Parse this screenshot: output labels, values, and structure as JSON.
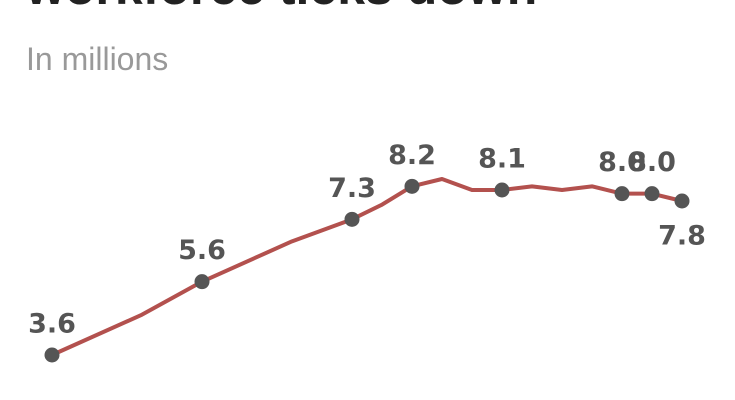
{
  "chart_data": {
    "type": "line",
    "title": "workforce ticks down",
    "subtitle": "In millions",
    "x": [
      0,
      3,
      5,
      8,
      10,
      11,
      12,
      13,
      14,
      15,
      16,
      17,
      18,
      19,
      20,
      21
    ],
    "xlim": [
      0,
      21
    ],
    "ylim": [
      3,
      9
    ],
    "series": [
      {
        "color": "#b3514e",
        "values": [
          3.6,
          4.7,
          5.6,
          6.7,
          7.3,
          7.7,
          8.2,
          8.4,
          8.1,
          8.1,
          8.2,
          8.1,
          8.2,
          8.0,
          8.0,
          7.8
        ],
        "value_labels": [
          "3.6",
          null,
          "5.6",
          null,
          "7.3",
          null,
          "8.2",
          null,
          null,
          "8.1",
          null,
          null,
          null,
          "8.0",
          "8.0",
          "7.8"
        ]
      }
    ]
  }
}
